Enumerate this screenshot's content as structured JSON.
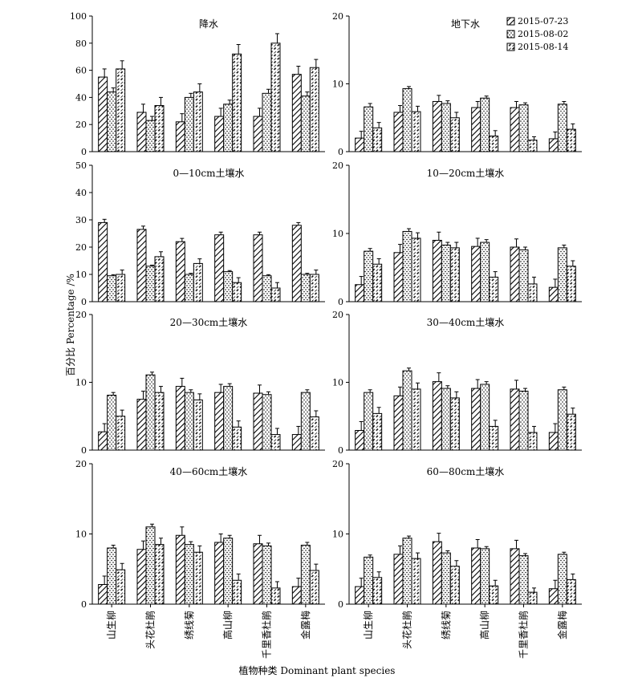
{
  "figure": {
    "ylabel": "百分比 Percentage /%",
    "xlabel": "植物种类 Dominant plant species"
  },
  "legend": [
    {
      "label": "2015-07-23",
      "pattern": "diag"
    },
    {
      "label": "2015-08-02",
      "pattern": "dots"
    },
    {
      "label": "2015-08-14",
      "pattern": "dash"
    }
  ],
  "chart_data": [
    {
      "type": "bar",
      "title": "降水",
      "categories": [
        "山生柳",
        "头花杜鹃",
        "绣线菊",
        "高山柳",
        "千里香杜鹃",
        "金露梅"
      ],
      "ylim": [
        0,
        100
      ],
      "yticks": [
        0,
        20,
        40,
        60,
        80,
        100
      ],
      "series": [
        {
          "name": "2015-07-23",
          "values": [
            55,
            29,
            22,
            26,
            26,
            57
          ],
          "errors": [
            6,
            6,
            6,
            6,
            6,
            6
          ]
        },
        {
          "name": "2015-08-02",
          "values": [
            44,
            23,
            40,
            35,
            43,
            41
          ],
          "errors": [
            3,
            3,
            3,
            3,
            3,
            3
          ]
        },
        {
          "name": "2015-08-14",
          "values": [
            61,
            34,
            44,
            72,
            80,
            62
          ],
          "errors": [
            6,
            6,
            6,
            7,
            7,
            6
          ]
        }
      ]
    },
    {
      "type": "bar",
      "title": "地下水",
      "categories": [
        "山生柳",
        "头花杜鹃",
        "绣线菊",
        "高山柳",
        "千里香杜鹃",
        "金露梅"
      ],
      "ylim": [
        0,
        20
      ],
      "yticks": [
        0,
        10,
        20
      ],
      "series": [
        {
          "name": "2015-07-23",
          "values": [
            2,
            5.8,
            7.4,
            6.5,
            6.5,
            1.9
          ],
          "errors": [
            1,
            1,
            0.9,
            0.9,
            0.9,
            1
          ]
        },
        {
          "name": "2015-08-02",
          "values": [
            6.6,
            9.3,
            7.1,
            7.9,
            6.9,
            7
          ],
          "errors": [
            0.5,
            0.3,
            0.4,
            0.3,
            0.3,
            0.4
          ]
        },
        {
          "name": "2015-08-14",
          "values": [
            3.5,
            5.9,
            5,
            2.3,
            1.7,
            3.3
          ],
          "errors": [
            0.8,
            0.8,
            0.8,
            0.8,
            0.5,
            0.8
          ]
        }
      ]
    },
    {
      "type": "bar",
      "title": "0—10cm土壤水",
      "categories": [
        "山生柳",
        "头花杜鹃",
        "绣线菊",
        "高山柳",
        "千里香杜鹃",
        "金露梅"
      ],
      "ylim": [
        0,
        50
      ],
      "yticks": [
        0,
        10,
        20,
        30,
        40,
        50
      ],
      "series": [
        {
          "name": "2015-07-23",
          "values": [
            29,
            26.5,
            22,
            24.5,
            24.5,
            28
          ],
          "errors": [
            1.2,
            1.2,
            1.2,
            1,
            1,
            1
          ]
        },
        {
          "name": "2015-08-02",
          "values": [
            9.5,
            13,
            10,
            11,
            9.5,
            10
          ],
          "errors": [
            0.4,
            0.4,
            0.4,
            0.4,
            0.4,
            0.4
          ]
        },
        {
          "name": "2015-08-14",
          "values": [
            10,
            16.5,
            14,
            7,
            5,
            10
          ],
          "errors": [
            1.6,
            1.8,
            1.7,
            1.8,
            2,
            1.6
          ]
        }
      ]
    },
    {
      "type": "bar",
      "title": "10—20cm土壤水",
      "categories": [
        "山生柳",
        "头花杜鹃",
        "绣线菊",
        "高山柳",
        "千里香杜鹃",
        "金露梅"
      ],
      "ylim": [
        0,
        20
      ],
      "yticks": [
        0,
        10,
        20
      ],
      "series": [
        {
          "name": "2015-07-23",
          "values": [
            2.5,
            7.2,
            9,
            8.1,
            8,
            2.1
          ],
          "errors": [
            1.2,
            1.2,
            1.2,
            1.2,
            1.2,
            1.2
          ]
        },
        {
          "name": "2015-08-02",
          "values": [
            7.4,
            10.3,
            8.3,
            8.7,
            7.6,
            7.9
          ],
          "errors": [
            0.4,
            0.4,
            0.4,
            0.4,
            0.4,
            0.4
          ]
        },
        {
          "name": "2015-08-14",
          "values": [
            5.5,
            9.3,
            7.9,
            3.6,
            2.6,
            5.2
          ],
          "errors": [
            0.8,
            0.8,
            0.8,
            0.8,
            1,
            0.8
          ]
        }
      ]
    },
    {
      "type": "bar",
      "title": "20—30cm土壤水",
      "categories": [
        "山生柳",
        "头花杜鹃",
        "绣线菊",
        "高山柳",
        "千里香杜鹃",
        "金露梅"
      ],
      "ylim": [
        0,
        20
      ],
      "yticks": [
        0,
        10,
        20
      ],
      "series": [
        {
          "name": "2015-07-23",
          "values": [
            2.7,
            7.5,
            9.4,
            8.5,
            8.4,
            2.3
          ],
          "errors": [
            1.2,
            1.2,
            1.2,
            1.2,
            1.2,
            1.2
          ]
        },
        {
          "name": "2015-08-02",
          "values": [
            8.1,
            11.1,
            8.5,
            9.4,
            8.2,
            8.5
          ],
          "errors": [
            0.4,
            0.4,
            0.4,
            0.4,
            0.4,
            0.4
          ]
        },
        {
          "name": "2015-08-14",
          "values": [
            5,
            8.5,
            7.4,
            3.4,
            2.3,
            4.9
          ],
          "errors": [
            0.9,
            0.9,
            0.9,
            0.9,
            0.9,
            0.9
          ]
        }
      ]
    },
    {
      "type": "bar",
      "title": "30—40cm土壤水",
      "categories": [
        "山生柳",
        "头花杜鹃",
        "绣线菊",
        "高山柳",
        "千里香杜鹃",
        "金露梅"
      ],
      "ylim": [
        0,
        20
      ],
      "yticks": [
        0,
        10,
        20
      ],
      "series": [
        {
          "name": "2015-07-23",
          "values": [
            2.9,
            8,
            10.1,
            9.1,
            9,
            2.6
          ],
          "errors": [
            1.3,
            1.3,
            1.3,
            1.3,
            1.3,
            1.3
          ]
        },
        {
          "name": "2015-08-02",
          "values": [
            8.5,
            11.7,
            9.1,
            9.7,
            8.7,
            8.9
          ],
          "errors": [
            0.4,
            0.4,
            0.4,
            0.4,
            0.4,
            0.4
          ]
        },
        {
          "name": "2015-08-14",
          "values": [
            5.4,
            9,
            7.7,
            3.5,
            2.6,
            5.3
          ],
          "errors": [
            0.9,
            0.9,
            0.9,
            0.9,
            0.9,
            0.9
          ]
        }
      ]
    },
    {
      "type": "bar",
      "title": "40—60cm土壤水",
      "categories": [
        "山生柳",
        "头花杜鹃",
        "绣线菊",
        "高山柳",
        "千里香杜鹃",
        "金露梅"
      ],
      "ylim": [
        0,
        20
      ],
      "yticks": [
        0,
        10,
        20
      ],
      "series": [
        {
          "name": "2015-07-23",
          "values": [
            2.8,
            7.8,
            9.8,
            8.8,
            8.6,
            2.5
          ],
          "errors": [
            1.2,
            1.2,
            1.2,
            1.2,
            1.2,
            1.2
          ]
        },
        {
          "name": "2015-08-02",
          "values": [
            8,
            11,
            8.5,
            9.4,
            8.3,
            8.4
          ],
          "errors": [
            0.4,
            0.4,
            0.4,
            0.4,
            0.4,
            0.4
          ]
        },
        {
          "name": "2015-08-14",
          "values": [
            4.9,
            8.5,
            7.4,
            3.4,
            2.3,
            4.8
          ],
          "errors": [
            0.9,
            0.9,
            0.9,
            0.9,
            0.9,
            0.9
          ]
        }
      ]
    },
    {
      "type": "bar",
      "title": "60—80cm土壤水",
      "categories": [
        "山生柳",
        "头花杜鹃",
        "绣线菊",
        "高山柳",
        "千里香杜鹃",
        "金露梅"
      ],
      "ylim": [
        0,
        20
      ],
      "yticks": [
        0,
        10,
        20
      ],
      "series": [
        {
          "name": "2015-07-23",
          "values": [
            2.5,
            7.1,
            8.9,
            8,
            7.9,
            2.2
          ],
          "errors": [
            1.2,
            1.2,
            1.2,
            1.2,
            1.2,
            1.2
          ]
        },
        {
          "name": "2015-08-02",
          "values": [
            6.7,
            9.4,
            7.3,
            7.9,
            6.9,
            7.1
          ],
          "errors": [
            0.3,
            0.3,
            0.3,
            0.3,
            0.3,
            0.3
          ]
        },
        {
          "name": "2015-08-14",
          "values": [
            3.8,
            6.5,
            5.4,
            2.6,
            1.7,
            3.5
          ],
          "errors": [
            0.8,
            0.8,
            0.8,
            0.8,
            0.6,
            0.8
          ]
        }
      ]
    }
  ]
}
